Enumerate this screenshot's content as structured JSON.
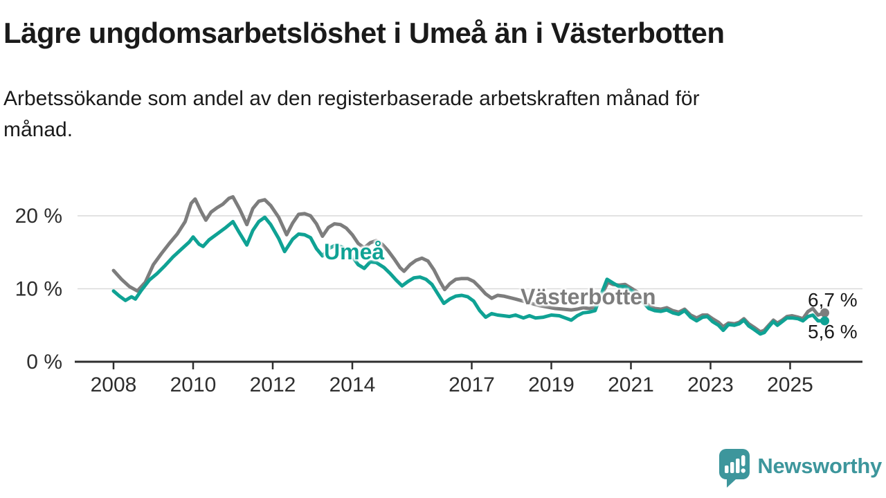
{
  "chart_data": {
    "type": "line",
    "title": "Lägre ungdomsarbetslöshet i Umeå än i Västerbotten",
    "subtitle": "Arbetssökande som andel av den registerbaserade arbetskraften månad för månad.",
    "unit": "%",
    "grid": "horizontal",
    "legend_position": "inline-labels",
    "xlim": [
      2007.1,
      2026.8
    ],
    "ylim": [
      0,
      24
    ],
    "x_ticks": [
      {
        "year": 2008,
        "label": "2008"
      },
      {
        "year": 2010,
        "label": "2010"
      },
      {
        "year": 2012,
        "label": "2012"
      },
      {
        "year": 2014,
        "label": "2014"
      },
      {
        "year": 2017,
        "label": "2017"
      },
      {
        "year": 2019,
        "label": "2019"
      },
      {
        "year": 2021,
        "label": "2021"
      },
      {
        "year": 2023,
        "label": "2023"
      },
      {
        "year": 2025,
        "label": "2025"
      }
    ],
    "y_ticks": [
      {
        "value": 20,
        "label": "20 %"
      },
      {
        "value": 10,
        "label": "10 %"
      },
      {
        "value": 0,
        "label": "0 %"
      }
    ],
    "series": [
      {
        "id": "vasterbotten",
        "name": "Västerbotten",
        "color": "#7d7d7d",
        "end_value": 6.7,
        "end_label": "6,7 %",
        "points": [
          [
            2008.0,
            12.5
          ],
          [
            2008.2,
            11.3
          ],
          [
            2008.4,
            10.3
          ],
          [
            2008.6,
            9.7
          ],
          [
            2008.8,
            10.9
          ],
          [
            2009.0,
            13.3
          ],
          [
            2009.2,
            14.8
          ],
          [
            2009.4,
            16.2
          ],
          [
            2009.6,
            17.5
          ],
          [
            2009.8,
            19.2
          ],
          [
            2009.95,
            21.7
          ],
          [
            2010.05,
            22.3
          ],
          [
            2010.2,
            20.6
          ],
          [
            2010.32,
            19.4
          ],
          [
            2010.45,
            20.5
          ],
          [
            2010.6,
            21.1
          ],
          [
            2010.75,
            21.6
          ],
          [
            2010.9,
            22.4
          ],
          [
            2011.0,
            22.6
          ],
          [
            2011.17,
            20.9
          ],
          [
            2011.35,
            18.8
          ],
          [
            2011.5,
            21.0
          ],
          [
            2011.65,
            22.0
          ],
          [
            2011.8,
            22.2
          ],
          [
            2011.95,
            21.4
          ],
          [
            2012.15,
            19.8
          ],
          [
            2012.35,
            17.4
          ],
          [
            2012.5,
            19.0
          ],
          [
            2012.65,
            20.2
          ],
          [
            2012.8,
            20.3
          ],
          [
            2012.95,
            20.0
          ],
          [
            2013.1,
            18.9
          ],
          [
            2013.25,
            17.2
          ],
          [
            2013.4,
            18.4
          ],
          [
            2013.55,
            18.9
          ],
          [
            2013.7,
            18.8
          ],
          [
            2013.85,
            18.3
          ],
          [
            2014.0,
            17.4
          ],
          [
            2014.15,
            16.2
          ],
          [
            2014.3,
            15.6
          ],
          [
            2014.45,
            16.3
          ],
          [
            2014.6,
            16.6
          ],
          [
            2014.75,
            16.1
          ],
          [
            2014.9,
            15.2
          ],
          [
            2015.05,
            14.1
          ],
          [
            2015.2,
            12.9
          ],
          [
            2015.3,
            12.4
          ],
          [
            2015.45,
            13.3
          ],
          [
            2015.6,
            13.9
          ],
          [
            2015.75,
            14.2
          ],
          [
            2015.9,
            13.8
          ],
          [
            2016.05,
            12.6
          ],
          [
            2016.2,
            11.0
          ],
          [
            2016.32,
            9.9
          ],
          [
            2016.45,
            10.7
          ],
          [
            2016.6,
            11.3
          ],
          [
            2016.75,
            11.4
          ],
          [
            2016.9,
            11.4
          ],
          [
            2017.05,
            11.0
          ],
          [
            2017.2,
            10.2
          ],
          [
            2017.35,
            9.3
          ],
          [
            2017.5,
            8.7
          ],
          [
            2017.65,
            9.1
          ],
          [
            2017.8,
            9.0
          ],
          [
            2017.95,
            8.8
          ],
          [
            2018.1,
            8.6
          ],
          [
            2018.3,
            8.3
          ],
          [
            2018.5,
            8.0
          ],
          [
            2018.7,
            7.7
          ],
          [
            2018.9,
            7.5
          ],
          [
            2019.1,
            7.3
          ],
          [
            2019.3,
            7.2
          ],
          [
            2019.5,
            7.1
          ],
          [
            2019.65,
            7.2
          ],
          [
            2019.8,
            7.4
          ],
          [
            2019.95,
            7.3
          ],
          [
            2020.1,
            7.5
          ],
          [
            2020.25,
            9.0
          ],
          [
            2020.42,
            10.9
          ],
          [
            2020.55,
            10.6
          ],
          [
            2020.7,
            10.5
          ],
          [
            2020.85,
            10.6
          ],
          [
            2021.0,
            10.1
          ],
          [
            2021.15,
            9.6
          ],
          [
            2021.3,
            8.6
          ],
          [
            2021.45,
            7.7
          ],
          [
            2021.6,
            7.3
          ],
          [
            2021.75,
            7.2
          ],
          [
            2021.9,
            7.4
          ],
          [
            2022.05,
            7.0
          ],
          [
            2022.2,
            6.8
          ],
          [
            2022.35,
            7.2
          ],
          [
            2022.5,
            6.4
          ],
          [
            2022.65,
            6.0
          ],
          [
            2022.8,
            6.4
          ],
          [
            2022.92,
            6.4
          ],
          [
            2023.05,
            5.9
          ],
          [
            2023.2,
            5.4
          ],
          [
            2023.32,
            4.8
          ],
          [
            2023.45,
            5.3
          ],
          [
            2023.6,
            5.2
          ],
          [
            2023.72,
            5.4
          ],
          [
            2023.84,
            5.9
          ],
          [
            2023.96,
            5.2
          ],
          [
            2024.1,
            4.7
          ],
          [
            2024.25,
            4.1
          ],
          [
            2024.35,
            4.3
          ],
          [
            2024.48,
            5.1
          ],
          [
            2024.58,
            5.7
          ],
          [
            2024.68,
            5.3
          ],
          [
            2024.8,
            5.7
          ],
          [
            2024.92,
            6.2
          ],
          [
            2025.05,
            6.3
          ],
          [
            2025.2,
            6.1
          ],
          [
            2025.32,
            5.9
          ],
          [
            2025.45,
            6.9
          ],
          [
            2025.57,
            7.3
          ],
          [
            2025.7,
            6.4
          ],
          [
            2025.87,
            6.7
          ]
        ]
      },
      {
        "id": "umea",
        "name": "Umeå",
        "color": "#0fa294",
        "end_value": 5.6,
        "end_label": "5,6 %",
        "points": [
          [
            2008.0,
            9.7
          ],
          [
            2008.15,
            9.0
          ],
          [
            2008.3,
            8.4
          ],
          [
            2008.45,
            8.9
          ],
          [
            2008.55,
            8.6
          ],
          [
            2008.7,
            9.8
          ],
          [
            2008.9,
            11.2
          ],
          [
            2009.1,
            12.1
          ],
          [
            2009.3,
            13.2
          ],
          [
            2009.5,
            14.4
          ],
          [
            2009.7,
            15.4
          ],
          [
            2009.9,
            16.4
          ],
          [
            2010.0,
            17.1
          ],
          [
            2010.15,
            16.1
          ],
          [
            2010.25,
            15.8
          ],
          [
            2010.4,
            16.7
          ],
          [
            2010.6,
            17.5
          ],
          [
            2010.8,
            18.3
          ],
          [
            2011.0,
            19.2
          ],
          [
            2011.15,
            17.8
          ],
          [
            2011.35,
            16.0
          ],
          [
            2011.5,
            18.0
          ],
          [
            2011.65,
            19.2
          ],
          [
            2011.8,
            19.8
          ],
          [
            2011.95,
            18.8
          ],
          [
            2012.15,
            16.9
          ],
          [
            2012.3,
            15.1
          ],
          [
            2012.5,
            16.8
          ],
          [
            2012.65,
            17.5
          ],
          [
            2012.8,
            17.4
          ],
          [
            2012.95,
            17.0
          ],
          [
            2013.1,
            15.5
          ],
          [
            2013.25,
            14.5
          ],
          [
            2013.4,
            15.5
          ],
          [
            2013.55,
            15.9
          ],
          [
            2013.7,
            15.8
          ],
          [
            2013.85,
            15.4
          ],
          [
            2014.0,
            14.4
          ],
          [
            2014.15,
            13.3
          ],
          [
            2014.3,
            12.8
          ],
          [
            2014.45,
            13.7
          ],
          [
            2014.6,
            13.6
          ],
          [
            2014.8,
            12.9
          ],
          [
            2014.95,
            12.1
          ],
          [
            2015.1,
            11.2
          ],
          [
            2015.25,
            10.4
          ],
          [
            2015.4,
            11.0
          ],
          [
            2015.55,
            11.5
          ],
          [
            2015.7,
            11.6
          ],
          [
            2015.85,
            11.3
          ],
          [
            2016.0,
            10.6
          ],
          [
            2016.15,
            9.3
          ],
          [
            2016.3,
            8.0
          ],
          [
            2016.45,
            8.6
          ],
          [
            2016.6,
            9.0
          ],
          [
            2016.75,
            9.1
          ],
          [
            2016.9,
            8.9
          ],
          [
            2017.05,
            8.3
          ],
          [
            2017.2,
            7.0
          ],
          [
            2017.35,
            6.1
          ],
          [
            2017.5,
            6.6
          ],
          [
            2017.65,
            6.4
          ],
          [
            2017.8,
            6.3
          ],
          [
            2017.95,
            6.2
          ],
          [
            2018.1,
            6.4
          ],
          [
            2018.3,
            6.0
          ],
          [
            2018.45,
            6.3
          ],
          [
            2018.6,
            6.0
          ],
          [
            2018.8,
            6.1
          ],
          [
            2019.0,
            6.4
          ],
          [
            2019.2,
            6.3
          ],
          [
            2019.35,
            6.0
          ],
          [
            2019.5,
            5.7
          ],
          [
            2019.65,
            6.3
          ],
          [
            2019.8,
            6.7
          ],
          [
            2019.95,
            6.8
          ],
          [
            2020.1,
            7.0
          ],
          [
            2020.25,
            9.2
          ],
          [
            2020.4,
            11.3
          ],
          [
            2020.55,
            10.8
          ],
          [
            2020.7,
            10.3
          ],
          [
            2020.85,
            10.3
          ],
          [
            2021.0,
            9.8
          ],
          [
            2021.15,
            9.2
          ],
          [
            2021.3,
            8.2
          ],
          [
            2021.45,
            7.3
          ],
          [
            2021.6,
            7.0
          ],
          [
            2021.75,
            6.9
          ],
          [
            2021.9,
            7.1
          ],
          [
            2022.05,
            6.7
          ],
          [
            2022.2,
            6.5
          ],
          [
            2022.35,
            7.0
          ],
          [
            2022.5,
            6.1
          ],
          [
            2022.65,
            5.6
          ],
          [
            2022.8,
            6.1
          ],
          [
            2022.92,
            6.2
          ],
          [
            2023.05,
            5.5
          ],
          [
            2023.2,
            5.0
          ],
          [
            2023.32,
            4.3
          ],
          [
            2023.45,
            5.1
          ],
          [
            2023.6,
            5.0
          ],
          [
            2023.72,
            5.2
          ],
          [
            2023.84,
            5.7
          ],
          [
            2023.96,
            4.9
          ],
          [
            2024.1,
            4.4
          ],
          [
            2024.25,
            3.8
          ],
          [
            2024.35,
            4.0
          ],
          [
            2024.48,
            4.9
          ],
          [
            2024.58,
            5.5
          ],
          [
            2024.68,
            5.0
          ],
          [
            2024.8,
            5.5
          ],
          [
            2024.92,
            6.0
          ],
          [
            2025.05,
            6.0
          ],
          [
            2025.2,
            5.9
          ],
          [
            2025.32,
            5.6
          ],
          [
            2025.45,
            6.2
          ],
          [
            2025.57,
            6.4
          ],
          [
            2025.7,
            5.6
          ],
          [
            2025.87,
            5.6
          ]
        ]
      }
    ],
    "colors": {
      "axis": "#2e2e2e",
      "gridline": "#d9d9d9",
      "value_label": "#1a1a1a"
    }
  },
  "footer": {
    "brand": "Newsworthy",
    "brand_color": "#3d969c"
  }
}
